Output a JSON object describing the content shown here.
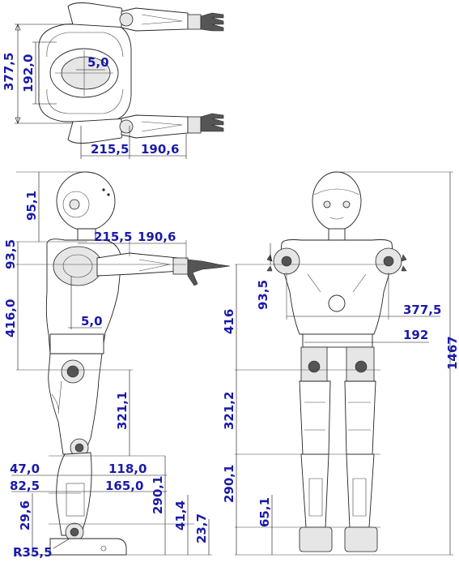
{
  "dimensions": {
    "top_height": "377,5",
    "top_inner_height": "192,0",
    "top_offset": "5,0",
    "top_shoulder": "215,5",
    "top_arm": "190,6",
    "side_head": "95,1",
    "side_shoulder_step": "93,5",
    "side_shoulder": "215,5",
    "side_arm": "190,6",
    "side_torso": "416,0",
    "side_offset": "5,0",
    "side_thigh": "321,1",
    "side_foot_a": "47,0",
    "side_foot_b": "118,0",
    "side_foot_c": "82,5",
    "side_foot_d": "165,0",
    "side_shin": "290,1",
    "side_ankle": "41,4",
    "side_heel": "29,6",
    "side_sole": "23,7",
    "side_radius": "R35,5",
    "front_total": "1467",
    "front_shoulder_step": "93,5",
    "front_width": "377,5",
    "front_torso": "416",
    "front_hip": "192",
    "front_thigh": "321,2",
    "front_shin": "290,1",
    "front_ankle": "65,1"
  }
}
